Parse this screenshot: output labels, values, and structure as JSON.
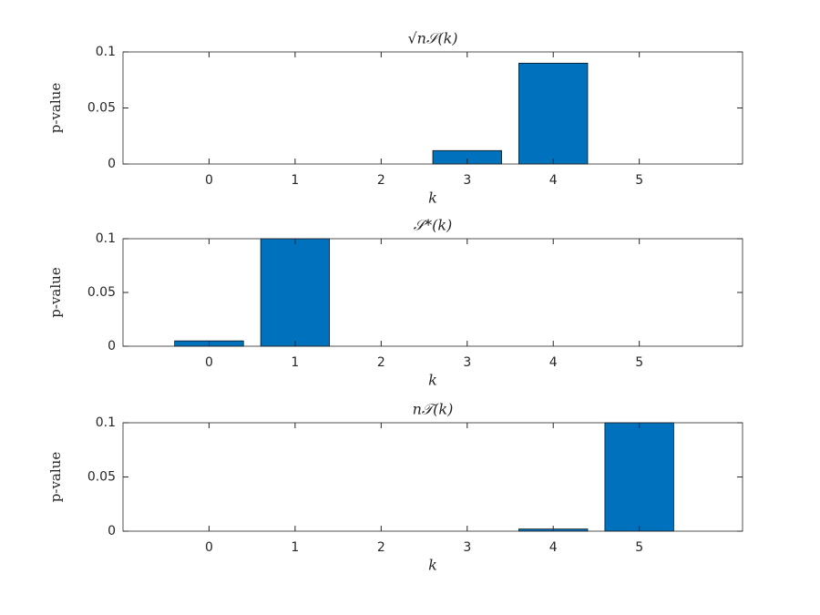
{
  "chart_data": [
    {
      "type": "bar",
      "title": "√n𝒮(k)",
      "xlabel": "k",
      "ylabel": "p-value",
      "color": "#0072bd",
      "x": [
        0,
        1,
        2,
        3,
        4,
        5
      ],
      "values": [
        0,
        0,
        0,
        0.012,
        0.09,
        0
      ],
      "xlim": [
        -1,
        6.2
      ],
      "xticks": [
        0,
        1,
        2,
        3,
        4,
        5
      ],
      "ylim": [
        0,
        0.1
      ],
      "yticks": [
        0,
        0.05,
        0.1
      ]
    },
    {
      "type": "bar",
      "title": "𝒮*(k)",
      "xlabel": "k",
      "ylabel": "p-value",
      "color": "#0072bd",
      "x": [
        0,
        1,
        2,
        3,
        4,
        5
      ],
      "values": [
        0.005,
        0.1,
        0,
        0,
        0,
        0
      ],
      "xlim": [
        -1,
        6.2
      ],
      "xticks": [
        0,
        1,
        2,
        3,
        4,
        5
      ],
      "ylim": [
        0,
        0.1
      ],
      "yticks": [
        0,
        0.05,
        0.1
      ]
    },
    {
      "type": "bar",
      "title": "n𝒯(k)",
      "xlabel": "k",
      "ylabel": "p-value",
      "color": "#0072bd",
      "x": [
        0,
        1,
        2,
        3,
        4,
        5
      ],
      "values": [
        0,
        0,
        0,
        0,
        0.002,
        0.1
      ],
      "xlim": [
        -1,
        6.2
      ],
      "xticks": [
        0,
        1,
        2,
        3,
        4,
        5
      ],
      "ylim": [
        0,
        0.1
      ],
      "yticks": [
        0,
        0.05,
        0.1
      ]
    }
  ]
}
